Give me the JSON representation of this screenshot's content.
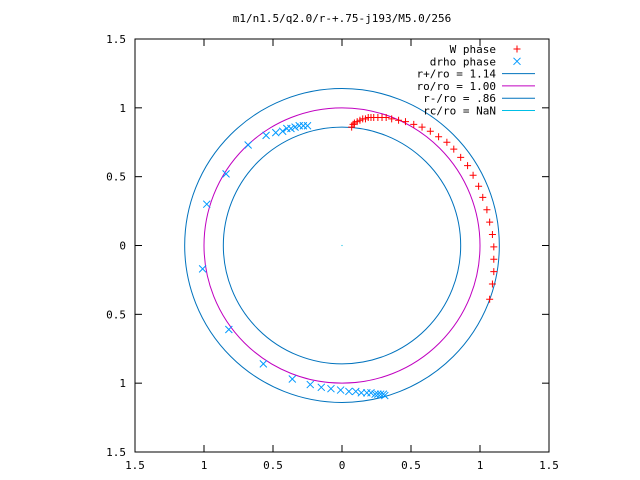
{
  "chart_data": {
    "type": "scatter",
    "title": "m1/n1.5/q2.0/r-+.75-j193/M5.0/256",
    "xlim": [
      -1.5,
      1.5
    ],
    "ylim": [
      -1.5,
      1.5
    ],
    "x_ticks": [
      {
        "value": -1.5,
        "label": "1.5"
      },
      {
        "value": -1.0,
        "label": "1"
      },
      {
        "value": -0.5,
        "label": "0.5"
      },
      {
        "value": 0,
        "label": "0"
      },
      {
        "value": 0.5,
        "label": "0.5"
      },
      {
        "value": 1.0,
        "label": "1"
      },
      {
        "value": 1.5,
        "label": "1.5"
      }
    ],
    "y_ticks": [
      {
        "value": 1.5,
        "label": "1.5"
      },
      {
        "value": 1.0,
        "label": "1"
      },
      {
        "value": 0.5,
        "label": "0.5"
      },
      {
        "value": 0,
        "label": "0"
      },
      {
        "value": -0.5,
        "label": "0.5"
      },
      {
        "value": -1.0,
        "label": "1"
      },
      {
        "value": -1.5,
        "label": "1.5"
      }
    ],
    "grid": false,
    "legend_position": "top-right",
    "scatter_series": [
      {
        "name": "W phase",
        "marker": "plus",
        "color": "#ff0000",
        "points": [
          [
            0.07,
            0.86
          ],
          [
            0.08,
            0.88
          ],
          [
            0.09,
            0.89
          ],
          [
            0.11,
            0.9
          ],
          [
            0.13,
            0.91
          ],
          [
            0.15,
            0.92
          ],
          [
            0.17,
            0.92
          ],
          [
            0.19,
            0.93
          ],
          [
            0.21,
            0.93
          ],
          [
            0.23,
            0.93
          ],
          [
            0.26,
            0.93
          ],
          [
            0.29,
            0.93
          ],
          [
            0.32,
            0.93
          ],
          [
            0.36,
            0.92
          ],
          [
            0.41,
            0.91
          ],
          [
            0.46,
            0.9
          ],
          [
            0.52,
            0.88
          ],
          [
            0.58,
            0.86
          ],
          [
            0.64,
            0.83
          ],
          [
            0.7,
            0.79
          ],
          [
            0.76,
            0.75
          ],
          [
            0.81,
            0.7
          ],
          [
            0.86,
            0.64
          ],
          [
            0.91,
            0.58
          ],
          [
            0.95,
            0.51
          ],
          [
            0.99,
            0.43
          ],
          [
            1.02,
            0.35
          ],
          [
            1.05,
            0.26
          ],
          [
            1.07,
            0.17
          ],
          [
            1.09,
            0.08
          ],
          [
            1.1,
            -0.01
          ],
          [
            1.1,
            -0.1
          ],
          [
            1.1,
            -0.19
          ],
          [
            1.09,
            -0.28
          ],
          [
            1.07,
            -0.39
          ]
        ]
      },
      {
        "name": "drho phase",
        "marker": "cross",
        "color": "#0099ff",
        "points": [
          [
            -0.25,
            0.87
          ],
          [
            -0.28,
            0.87
          ],
          [
            -0.31,
            0.87
          ],
          [
            -0.34,
            0.86
          ],
          [
            -0.37,
            0.85
          ],
          [
            -0.4,
            0.85
          ],
          [
            -0.43,
            0.83
          ],
          [
            -0.48,
            0.82
          ],
          [
            -0.55,
            0.8
          ],
          [
            -0.68,
            0.73
          ],
          [
            -0.84,
            0.52
          ],
          [
            -0.98,
            0.3
          ],
          [
            -1.01,
            -0.17
          ],
          [
            -0.82,
            -0.61
          ],
          [
            -0.57,
            -0.86
          ],
          [
            -0.36,
            -0.97
          ],
          [
            -0.23,
            -1.01
          ],
          [
            -0.15,
            -1.03
          ],
          [
            -0.08,
            -1.04
          ],
          [
            -0.01,
            -1.05
          ],
          [
            0.05,
            -1.06
          ],
          [
            0.1,
            -1.06
          ],
          [
            0.14,
            -1.07
          ],
          [
            0.18,
            -1.07
          ],
          [
            0.21,
            -1.07
          ],
          [
            0.24,
            -1.08
          ],
          [
            0.26,
            -1.08
          ],
          [
            0.28,
            -1.08
          ],
          [
            0.3,
            -1.08
          ],
          [
            0.31,
            -1.09
          ]
        ]
      }
    ],
    "circles": [
      {
        "name": "r+/ro = 1.14",
        "radius": 1.14,
        "color": "#0072bd"
      },
      {
        "name": "ro/ro = 1.00",
        "radius": 1.0,
        "color": "#c000c0"
      },
      {
        "name": "r-/ro = .86",
        "radius": 0.86,
        "color": "#0072bd"
      },
      {
        "name": "rc/ro = NaN",
        "radius": null,
        "color": "#00bfe6"
      }
    ]
  }
}
